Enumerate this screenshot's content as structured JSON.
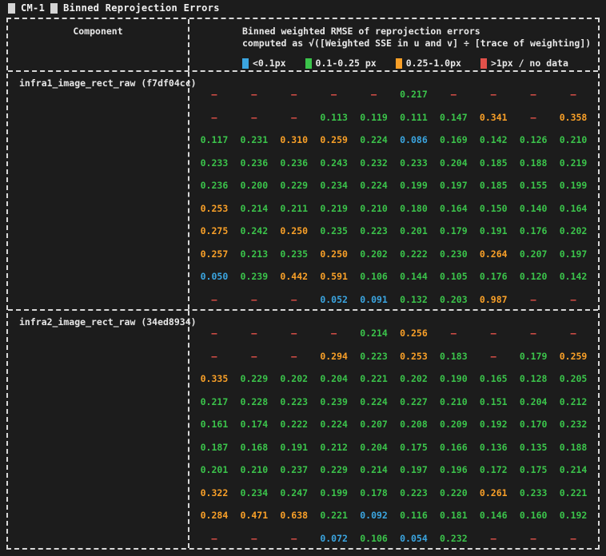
{
  "title": {
    "block1": "█",
    "label": "CM-1",
    "block2": "█",
    "heading": "Binned Reprojection Errors"
  },
  "header": {
    "component_column": "Component",
    "metric_line1": "Binned weighted RMSE of reprojection errors",
    "metric_line2": "computed as √([Weighted SSE in u and v] ÷ [trace of weighting])"
  },
  "legend": {
    "items": [
      {
        "key": "b",
        "color": "#3ba5e0",
        "label": "<0.1px"
      },
      {
        "key": "g",
        "color": "#3bc44b",
        "label": "0.1-0.25 px"
      },
      {
        "key": "o",
        "color": "#f9a028",
        "label": "0.25-1.0px"
      },
      {
        "key": "r",
        "color": "#e2514a",
        "label": ">1px / no data"
      }
    ]
  },
  "colors": {
    "b": "#3ba5e0",
    "g": "#3bc44b",
    "o": "#f9a028",
    "r": "#e2514a"
  },
  "no_data_symbol": "–",
  "sections": [
    {
      "name": "infra1_image_rect_raw (f7df04cc)",
      "rows": [
        [
          [
            "–",
            "r"
          ],
          [
            "–",
            "r"
          ],
          [
            "–",
            "r"
          ],
          [
            "–",
            "r"
          ],
          [
            "–",
            "r"
          ],
          [
            "0.217",
            "g"
          ],
          [
            "–",
            "r"
          ],
          [
            "–",
            "r"
          ],
          [
            "–",
            "r"
          ],
          [
            "–",
            "r"
          ]
        ],
        [
          [
            "–",
            "r"
          ],
          [
            "–",
            "r"
          ],
          [
            "–",
            "r"
          ],
          [
            "0.113",
            "g"
          ],
          [
            "0.119",
            "g"
          ],
          [
            "0.111",
            "g"
          ],
          [
            "0.147",
            "g"
          ],
          [
            "0.341",
            "o"
          ],
          [
            "–",
            "r"
          ],
          [
            "0.358",
            "o"
          ]
        ],
        [
          [
            "0.117",
            "g"
          ],
          [
            "0.231",
            "g"
          ],
          [
            "0.310",
            "o"
          ],
          [
            "0.259",
            "o"
          ],
          [
            "0.224",
            "g"
          ],
          [
            "0.086",
            "b"
          ],
          [
            "0.169",
            "g"
          ],
          [
            "0.142",
            "g"
          ],
          [
            "0.126",
            "g"
          ],
          [
            "0.210",
            "g"
          ]
        ],
        [
          [
            "0.233",
            "g"
          ],
          [
            "0.236",
            "g"
          ],
          [
            "0.236",
            "g"
          ],
          [
            "0.243",
            "g"
          ],
          [
            "0.232",
            "g"
          ],
          [
            "0.233",
            "g"
          ],
          [
            "0.204",
            "g"
          ],
          [
            "0.185",
            "g"
          ],
          [
            "0.188",
            "g"
          ],
          [
            "0.219",
            "g"
          ]
        ],
        [
          [
            "0.236",
            "g"
          ],
          [
            "0.200",
            "g"
          ],
          [
            "0.229",
            "g"
          ],
          [
            "0.234",
            "g"
          ],
          [
            "0.224",
            "g"
          ],
          [
            "0.199",
            "g"
          ],
          [
            "0.197",
            "g"
          ],
          [
            "0.185",
            "g"
          ],
          [
            "0.155",
            "g"
          ],
          [
            "0.199",
            "g"
          ]
        ],
        [
          [
            "0.253",
            "o"
          ],
          [
            "0.214",
            "g"
          ],
          [
            "0.211",
            "g"
          ],
          [
            "0.219",
            "g"
          ],
          [
            "0.210",
            "g"
          ],
          [
            "0.180",
            "g"
          ],
          [
            "0.164",
            "g"
          ],
          [
            "0.150",
            "g"
          ],
          [
            "0.140",
            "g"
          ],
          [
            "0.164",
            "g"
          ]
        ],
        [
          [
            "0.275",
            "o"
          ],
          [
            "0.242",
            "g"
          ],
          [
            "0.250",
            "o"
          ],
          [
            "0.235",
            "g"
          ],
          [
            "0.223",
            "g"
          ],
          [
            "0.201",
            "g"
          ],
          [
            "0.179",
            "g"
          ],
          [
            "0.191",
            "g"
          ],
          [
            "0.176",
            "g"
          ],
          [
            "0.202",
            "g"
          ]
        ],
        [
          [
            "0.257",
            "o"
          ],
          [
            "0.213",
            "g"
          ],
          [
            "0.235",
            "g"
          ],
          [
            "0.250",
            "o"
          ],
          [
            "0.202",
            "g"
          ],
          [
            "0.222",
            "g"
          ],
          [
            "0.230",
            "g"
          ],
          [
            "0.264",
            "o"
          ],
          [
            "0.207",
            "g"
          ],
          [
            "0.197",
            "g"
          ]
        ],
        [
          [
            "0.050",
            "b"
          ],
          [
            "0.239",
            "g"
          ],
          [
            "0.442",
            "o"
          ],
          [
            "0.591",
            "o"
          ],
          [
            "0.106",
            "g"
          ],
          [
            "0.144",
            "g"
          ],
          [
            "0.105",
            "g"
          ],
          [
            "0.176",
            "g"
          ],
          [
            "0.120",
            "g"
          ],
          [
            "0.142",
            "g"
          ]
        ],
        [
          [
            "–",
            "r"
          ],
          [
            "–",
            "r"
          ],
          [
            "–",
            "r"
          ],
          [
            "0.052",
            "b"
          ],
          [
            "0.091",
            "b"
          ],
          [
            "0.132",
            "g"
          ],
          [
            "0.203",
            "g"
          ],
          [
            "0.987",
            "o"
          ],
          [
            "–",
            "r"
          ],
          [
            "–",
            "r"
          ]
        ]
      ]
    },
    {
      "name": "infra2_image_rect_raw (34ed8934)",
      "rows": [
        [
          [
            "–",
            "r"
          ],
          [
            "–",
            "r"
          ],
          [
            "–",
            "r"
          ],
          [
            "–",
            "r"
          ],
          [
            "0.214",
            "g"
          ],
          [
            "0.256",
            "o"
          ],
          [
            "–",
            "r"
          ],
          [
            "–",
            "r"
          ],
          [
            "–",
            "r"
          ],
          [
            "–",
            "r"
          ]
        ],
        [
          [
            "–",
            "r"
          ],
          [
            "–",
            "r"
          ],
          [
            "–",
            "r"
          ],
          [
            "0.294",
            "o"
          ],
          [
            "0.223",
            "g"
          ],
          [
            "0.253",
            "o"
          ],
          [
            "0.183",
            "g"
          ],
          [
            "–",
            "r"
          ],
          [
            "0.179",
            "g"
          ],
          [
            "0.259",
            "o"
          ]
        ],
        [
          [
            "0.335",
            "o"
          ],
          [
            "0.229",
            "g"
          ],
          [
            "0.202",
            "g"
          ],
          [
            "0.204",
            "g"
          ],
          [
            "0.221",
            "g"
          ],
          [
            "0.202",
            "g"
          ],
          [
            "0.190",
            "g"
          ],
          [
            "0.165",
            "g"
          ],
          [
            "0.128",
            "g"
          ],
          [
            "0.205",
            "g"
          ]
        ],
        [
          [
            "0.217",
            "g"
          ],
          [
            "0.228",
            "g"
          ],
          [
            "0.223",
            "g"
          ],
          [
            "0.239",
            "g"
          ],
          [
            "0.224",
            "g"
          ],
          [
            "0.227",
            "g"
          ],
          [
            "0.210",
            "g"
          ],
          [
            "0.151",
            "g"
          ],
          [
            "0.204",
            "g"
          ],
          [
            "0.212",
            "g"
          ]
        ],
        [
          [
            "0.161",
            "g"
          ],
          [
            "0.174",
            "g"
          ],
          [
            "0.222",
            "g"
          ],
          [
            "0.224",
            "g"
          ],
          [
            "0.207",
            "g"
          ],
          [
            "0.208",
            "g"
          ],
          [
            "0.209",
            "g"
          ],
          [
            "0.192",
            "g"
          ],
          [
            "0.170",
            "g"
          ],
          [
            "0.232",
            "g"
          ]
        ],
        [
          [
            "0.187",
            "g"
          ],
          [
            "0.168",
            "g"
          ],
          [
            "0.191",
            "g"
          ],
          [
            "0.212",
            "g"
          ],
          [
            "0.204",
            "g"
          ],
          [
            "0.175",
            "g"
          ],
          [
            "0.166",
            "g"
          ],
          [
            "0.136",
            "g"
          ],
          [
            "0.135",
            "g"
          ],
          [
            "0.188",
            "g"
          ]
        ],
        [
          [
            "0.201",
            "g"
          ],
          [
            "0.210",
            "g"
          ],
          [
            "0.237",
            "g"
          ],
          [
            "0.229",
            "g"
          ],
          [
            "0.214",
            "g"
          ],
          [
            "0.197",
            "g"
          ],
          [
            "0.196",
            "g"
          ],
          [
            "0.172",
            "g"
          ],
          [
            "0.175",
            "g"
          ],
          [
            "0.214",
            "g"
          ]
        ],
        [
          [
            "0.322",
            "o"
          ],
          [
            "0.234",
            "g"
          ],
          [
            "0.247",
            "g"
          ],
          [
            "0.199",
            "g"
          ],
          [
            "0.178",
            "g"
          ],
          [
            "0.223",
            "g"
          ],
          [
            "0.220",
            "g"
          ],
          [
            "0.261",
            "o"
          ],
          [
            "0.233",
            "g"
          ],
          [
            "0.221",
            "g"
          ]
        ],
        [
          [
            "0.284",
            "o"
          ],
          [
            "0.471",
            "o"
          ],
          [
            "0.638",
            "o"
          ],
          [
            "0.221",
            "g"
          ],
          [
            "0.092",
            "b"
          ],
          [
            "0.116",
            "g"
          ],
          [
            "0.181",
            "g"
          ],
          [
            "0.146",
            "g"
          ],
          [
            "0.160",
            "g"
          ],
          [
            "0.192",
            "g"
          ]
        ],
        [
          [
            "–",
            "r"
          ],
          [
            "–",
            "r"
          ],
          [
            "–",
            "r"
          ],
          [
            "0.072",
            "b"
          ],
          [
            "0.106",
            "g"
          ],
          [
            "0.054",
            "b"
          ],
          [
            "0.232",
            "g"
          ],
          [
            "–",
            "r"
          ],
          [
            "–",
            "r"
          ],
          [
            "–",
            "r"
          ]
        ]
      ]
    }
  ]
}
